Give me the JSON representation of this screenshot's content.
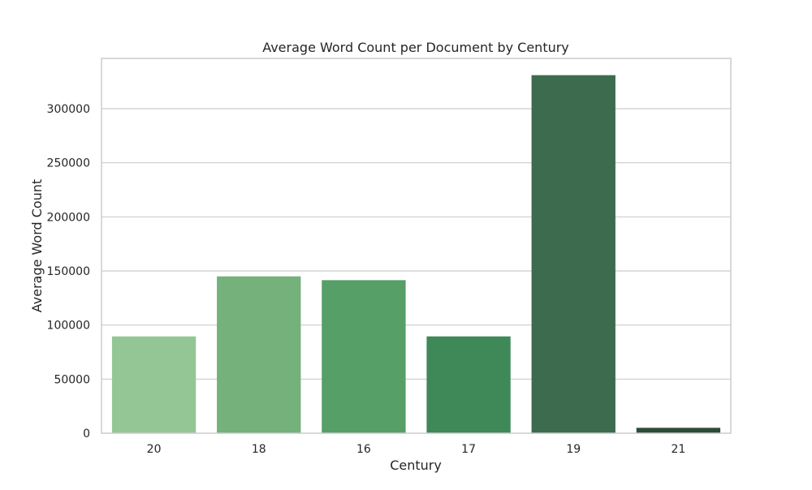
{
  "chart_data": {
    "type": "bar",
    "title": "Average Word Count per Document by Century",
    "xlabel": "Century",
    "ylabel": "Average Word Count",
    "categories": [
      "20",
      "18",
      "16",
      "17",
      "19",
      "21"
    ],
    "values": [
      89500,
      145000,
      141500,
      89500,
      331000,
      5000
    ],
    "ylim": [
      0,
      346500
    ],
    "yticks": [
      0,
      50000,
      100000,
      150000,
      200000,
      250000,
      300000
    ],
    "grid": "horizontal",
    "legend": "none",
    "colors": [
      "#94c695",
      "#74b17b",
      "#569f67",
      "#3f8857",
      "#3c6b4d",
      "#2c4c37"
    ]
  }
}
